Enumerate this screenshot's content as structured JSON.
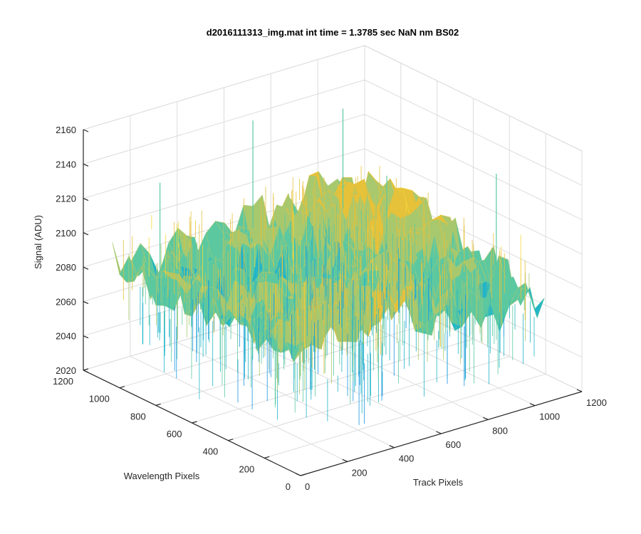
{
  "window": {
    "background": "#ffffff"
  },
  "chart_data": {
    "type": "surface",
    "title": "d2016111313_img.mat int time = 1.3785 sec  NaN nm BS02",
    "xlabel": "Track Pixels",
    "ylabel": "Wavelength Pixels",
    "zlabel": "Signal (ADU)",
    "xlim": [
      0,
      1200
    ],
    "ylim": [
      0,
      1200
    ],
    "zlim": [
      2020,
      2160
    ],
    "xticks": [
      0,
      200,
      400,
      600,
      800,
      1000,
      1200
    ],
    "yticks": [
      0,
      200,
      400,
      600,
      800,
      1000,
      1200
    ],
    "zticks": [
      2020,
      2040,
      2060,
      2080,
      2100,
      2120,
      2140,
      2160
    ],
    "xtick_labels": [
      "0",
      "200",
      "400",
      "600",
      "800",
      "1000",
      "1200"
    ],
    "ytick_labels": [
      "0",
      "200",
      "400",
      "600",
      "800",
      "1000",
      "1200"
    ],
    "ztick_labels": [
      "2020",
      "2040",
      "2060",
      "2080",
      "2100",
      "2120",
      "2140",
      "2160"
    ],
    "grid": true,
    "colormap": "parula",
    "colors": [
      "#0072bd",
      "#1a96e0",
      "#23b5c8",
      "#5cc8a0",
      "#a8c86e",
      "#e6c13a",
      "#f5d83a"
    ],
    "data_extent": {
      "x": [
        0,
        1040
      ],
      "y": [
        0,
        1040
      ]
    },
    "surface_stats": {
      "mean": 2090,
      "min": 2030,
      "max": 2155
    }
  }
}
